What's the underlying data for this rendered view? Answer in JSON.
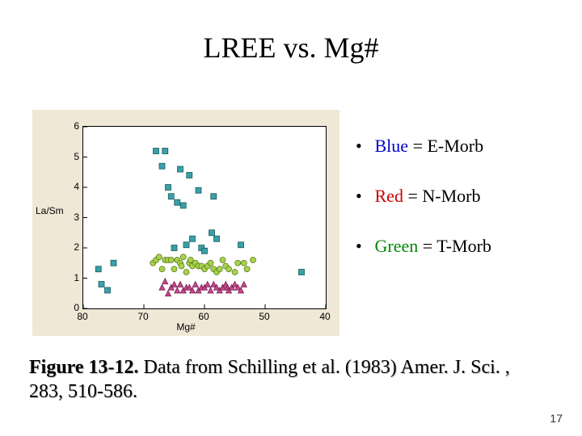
{
  "title": "LREE vs. Mg#",
  "legend": {
    "items": [
      {
        "label": "Blue = E-Morb",
        "color": "#0000cc"
      },
      {
        "label": "Red = N-Morb",
        "color": "#cc0000"
      },
      {
        "label": "Green = T-Morb",
        "color": "#008800"
      }
    ]
  },
  "caption": {
    "figlabel": "Figure 13-12.",
    "text": " Data from Schilling et al. (1983) Amer. J. Sci. , 283, 510-586."
  },
  "page_number": "17",
  "chart": {
    "type": "scatter",
    "xlabel": "Mg#",
    "ylabel": "La/Sm",
    "xlim": [
      80,
      40
    ],
    "ylim": [
      0,
      6
    ],
    "xticks": [
      80,
      70,
      60,
      50,
      40
    ],
    "yticks": [
      0,
      1,
      2,
      3,
      4,
      5,
      6
    ],
    "label_fontsize": 12,
    "tick_fontsize": 12,
    "font_family": "Arial",
    "background_color": "#f0e8d6",
    "plot_background": "#ffffff",
    "border_color": "#000000",
    "series": [
      {
        "name": "E-Morb",
        "marker": "square",
        "size": 7,
        "fill": "#3aa0a8",
        "stroke": "#1a5a60",
        "points": [
          [
            77.5,
            1.3
          ],
          [
            77.0,
            0.8
          ],
          [
            76.0,
            0.6
          ],
          [
            75.0,
            1.5
          ],
          [
            68.0,
            5.2
          ],
          [
            67.0,
            4.7
          ],
          [
            66.0,
            4.0
          ],
          [
            66.5,
            5.2
          ],
          [
            65.5,
            3.7
          ],
          [
            64.5,
            3.5
          ],
          [
            65.0,
            2.0
          ],
          [
            64.0,
            4.6
          ],
          [
            63.5,
            3.4
          ],
          [
            63.0,
            2.1
          ],
          [
            62.5,
            4.4
          ],
          [
            62.0,
            2.3
          ],
          [
            61.0,
            3.9
          ],
          [
            60.5,
            2.0
          ],
          [
            60.0,
            1.9
          ],
          [
            58.8,
            2.5
          ],
          [
            58.5,
            3.7
          ],
          [
            58.0,
            2.3
          ],
          [
            54.0,
            2.1
          ],
          [
            44.0,
            1.2
          ]
        ]
      },
      {
        "name": "T-Morb",
        "marker": "circle",
        "size": 7,
        "fill": "#a7d24a",
        "stroke": "#5a7a20",
        "points": [
          [
            68.5,
            1.5
          ],
          [
            68.0,
            1.6
          ],
          [
            67.5,
            1.7
          ],
          [
            67.0,
            1.3
          ],
          [
            66.5,
            1.6
          ],
          [
            66.0,
            1.6
          ],
          [
            65.5,
            1.6
          ],
          [
            65.0,
            1.3
          ],
          [
            64.5,
            1.6
          ],
          [
            64.0,
            1.5
          ],
          [
            63.8,
            1.4
          ],
          [
            63.5,
            1.7
          ],
          [
            63.0,
            1.2
          ],
          [
            62.5,
            1.5
          ],
          [
            62.3,
            1.6
          ],
          [
            62.0,
            1.4
          ],
          [
            61.5,
            1.5
          ],
          [
            61.0,
            1.4
          ],
          [
            60.5,
            1.4
          ],
          [
            60.0,
            1.3
          ],
          [
            59.5,
            1.4
          ],
          [
            59.0,
            1.5
          ],
          [
            58.5,
            1.3
          ],
          [
            58.0,
            1.2
          ],
          [
            57.5,
            1.3
          ],
          [
            57.0,
            1.6
          ],
          [
            56.5,
            1.4
          ],
          [
            56.0,
            1.3
          ],
          [
            55.0,
            1.2
          ],
          [
            54.5,
            1.5
          ],
          [
            53.5,
            1.5
          ],
          [
            53.0,
            1.3
          ],
          [
            52.0,
            1.6
          ]
        ]
      },
      {
        "name": "N-Morb",
        "marker": "triangle",
        "size": 7,
        "fill": "#c24a8a",
        "stroke": "#7a1a50",
        "points": [
          [
            67.0,
            0.7
          ],
          [
            66.5,
            0.9
          ],
          [
            66.0,
            0.5
          ],
          [
            65.5,
            0.7
          ],
          [
            65.0,
            0.8
          ],
          [
            64.5,
            0.6
          ],
          [
            64.0,
            0.8
          ],
          [
            63.5,
            0.6
          ],
          [
            63.0,
            0.7
          ],
          [
            62.5,
            0.7
          ],
          [
            62.0,
            0.6
          ],
          [
            61.5,
            0.8
          ],
          [
            61.0,
            0.6
          ],
          [
            60.5,
            0.7
          ],
          [
            60.0,
            0.7
          ],
          [
            59.5,
            0.8
          ],
          [
            59.0,
            0.6
          ],
          [
            58.5,
            0.8
          ],
          [
            58.0,
            0.7
          ],
          [
            57.5,
            0.6
          ],
          [
            57.0,
            0.7
          ],
          [
            56.5,
            0.8
          ],
          [
            56.2,
            0.7
          ],
          [
            56.0,
            0.6
          ],
          [
            55.5,
            0.7
          ],
          [
            55.0,
            0.8
          ],
          [
            54.5,
            0.7
          ],
          [
            54.0,
            0.6
          ],
          [
            53.5,
            0.8
          ]
        ]
      }
    ]
  }
}
